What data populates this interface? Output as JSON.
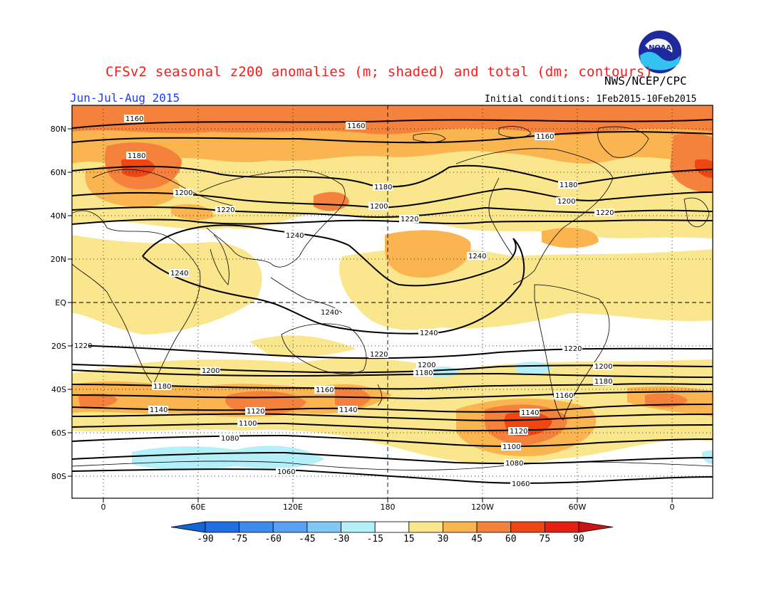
{
  "header": {
    "title": "CFSv2 seasonal z200 anomalies (m; shaded) and total (dm; contours)",
    "agency": "NWS/NCEP/CPC",
    "season": "Jun-Jul-Aug 2015",
    "initial_conditions": "Initial conditions: 1Feb2015-10Feb2015",
    "logo_text": "NOAA"
  },
  "map": {
    "lat_labels": [
      "80N",
      "60N",
      "40N",
      "20N",
      "EQ",
      "20S",
      "40S",
      "60S",
      "80S"
    ],
    "lon_labels": [
      "0",
      "60E",
      "120E",
      "180",
      "120W",
      "60W",
      "0"
    ],
    "contour_labels": [
      "1160",
      "1180",
      "1200",
      "1220",
      "1240",
      "1140",
      "1120",
      "1100",
      "1080",
      "1060"
    ]
  },
  "colorbar": {
    "ticks": [
      "-90",
      "-75",
      "-60",
      "-45",
      "-30",
      "-15",
      "15",
      "30",
      "45",
      "60",
      "75",
      "90"
    ],
    "colors": [
      "#1464d2",
      "#1e6ee6",
      "#3c8cf0",
      "#5aa0f5",
      "#82c8f5",
      "#b4f0fa",
      "#ffffff",
      "#fae68c",
      "#fab450",
      "#f5823c",
      "#f04614",
      "#e61e14",
      "#c81414"
    ]
  }
}
